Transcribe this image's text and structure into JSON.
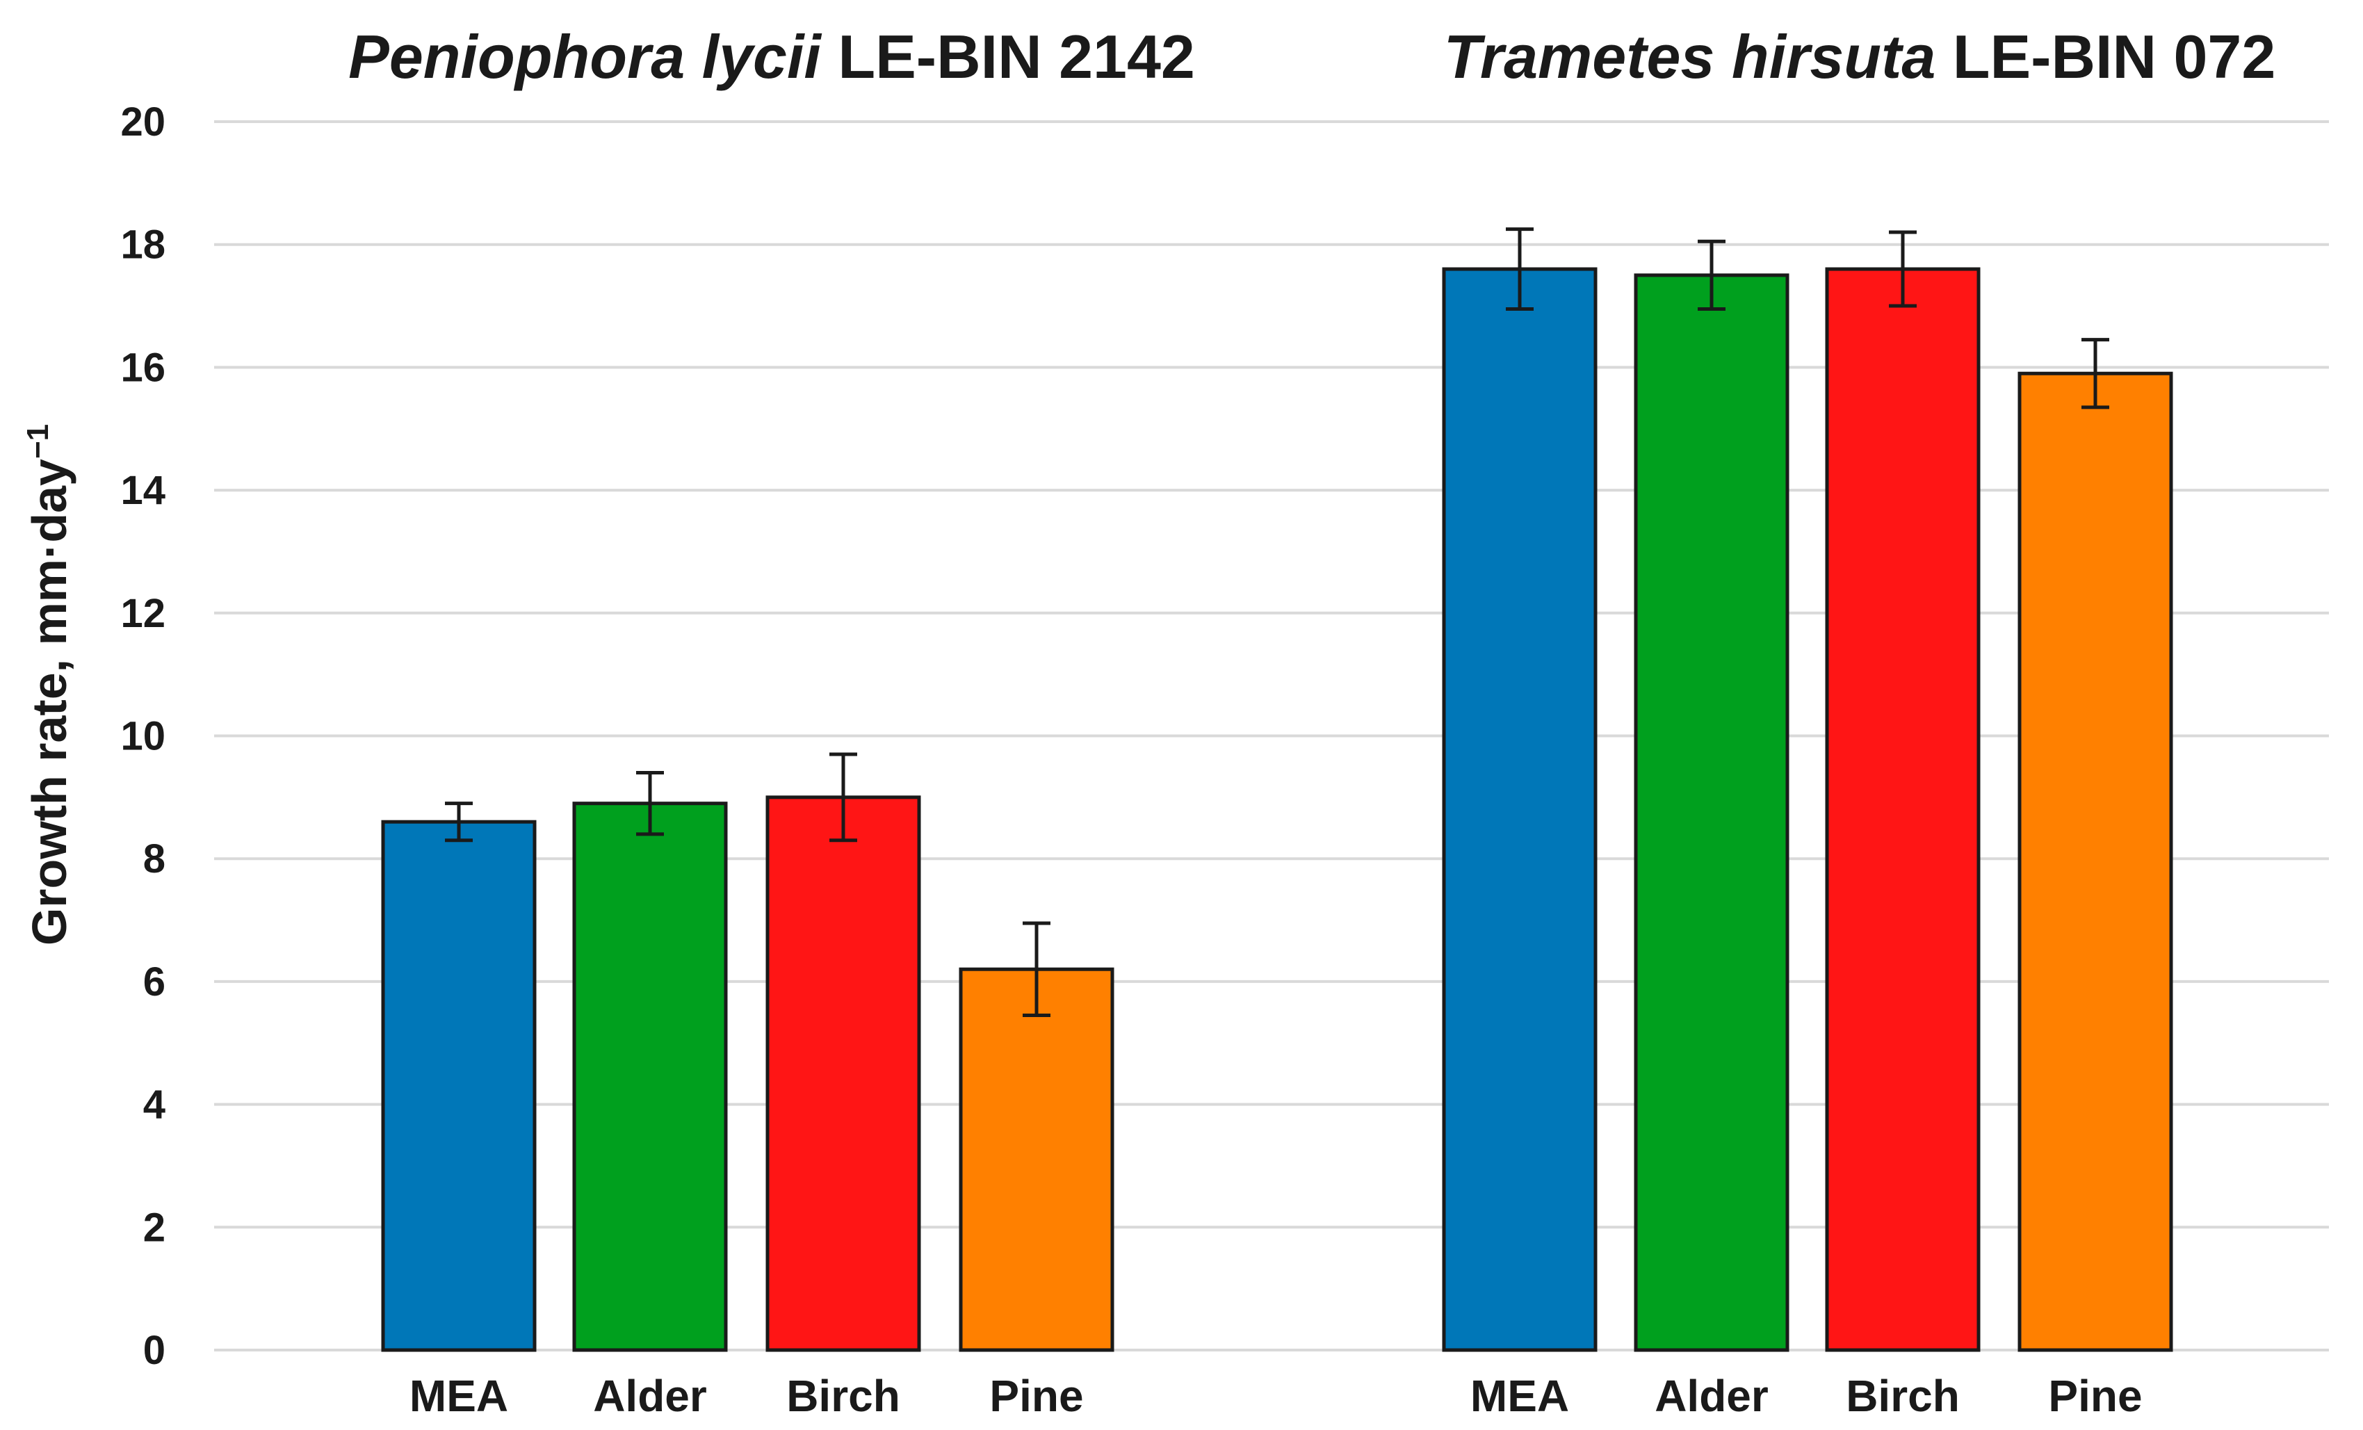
{
  "chart_data": {
    "type": "bar",
    "ylabel": "Growth rate, mm·day",
    "ylabel_superscript": "−1",
    "ylim": [
      0,
      20
    ],
    "yticks": [
      0,
      2,
      4,
      6,
      8,
      10,
      12,
      14,
      16,
      18,
      20
    ],
    "grid": true,
    "colors": {
      "MEA": "#0077b8",
      "Alder": "#00a01e",
      "Birch": "#ff1515",
      "Pine": "#ff8000"
    },
    "panels": [
      {
        "title_italic": "Peniophora lycii",
        "title_rest": " LE-BIN 2142",
        "categories": [
          "MEA",
          "Alder",
          "Birch",
          "Pine"
        ],
        "values": [
          8.6,
          8.9,
          9.0,
          6.2
        ],
        "errors": [
          0.3,
          0.5,
          0.7,
          0.75
        ]
      },
      {
        "title_italic": "Trametes hirsuta",
        "title_rest": " LE-BIN 072",
        "categories": [
          "MEA",
          "Alder",
          "Birch",
          "Pine"
        ],
        "values": [
          17.6,
          17.5,
          17.6,
          15.9
        ],
        "errors": [
          0.65,
          0.55,
          0.6,
          0.55
        ]
      }
    ]
  }
}
